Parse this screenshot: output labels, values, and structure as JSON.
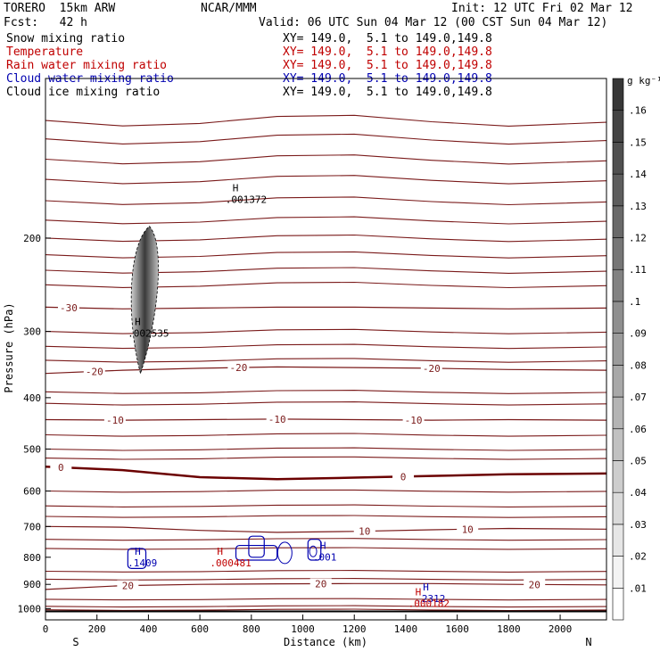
{
  "header": {
    "model": "TORERO  15km ARW",
    "org": "NCAR/MMM",
    "init": "Init: 12 UTC Fri 02 Mar 12",
    "fcst": "Fcst:   42 h",
    "valid": "Valid: 06 UTC Sun 04 Mar 12 (00 CST Sun 04 Mar 12)"
  },
  "fields": [
    {
      "name": "Snow mixing ratio",
      "xy": "XY= 149.0,  5.1 to 149.0,149.8",
      "color": "#000000"
    },
    {
      "name": "Temperature",
      "xy": "XY= 149.0,  5.1 to 149.0,149.8",
      "color": "#c00000"
    },
    {
      "name": "Rain water mixing ratio",
      "xy": "XY= 149.0,  5.1 to 149.0,149.8",
      "color": "#c00000"
    },
    {
      "name": "Cloud water mixing ratio",
      "xy": "XY= 149.0,  5.1 to 149.0,149.8",
      "color": "#0000b0"
    },
    {
      "name": "Cloud ice mixing ratio",
      "xy": "XY= 149.0,  5.1 to 149.0,149.8",
      "color": "#000000"
    }
  ],
  "colors": {
    "temperature": "#7a1a1a",
    "zero_isotherm": "#6b0000",
    "cloud_water": "#0000b0",
    "rain": "#c00000",
    "snow_shade": "#555555"
  },
  "chart_data": {
    "type": "contour",
    "xlabel": "Distance (km)",
    "ylabel": "Pressure (hPa)",
    "xlim": [
      0,
      2180
    ],
    "ylim": [
      1050,
      100
    ],
    "yscale": "log",
    "x_ticks": [
      0,
      200,
      400,
      600,
      800,
      1000,
      1200,
      1400,
      1600,
      1800,
      2000
    ],
    "y_ticks": [
      200,
      300,
      400,
      500,
      600,
      700,
      800,
      900,
      1000
    ],
    "x_end_labels": {
      "left": "S",
      "right": "N"
    },
    "colorbar": {
      "unit": "g kg⁻¹",
      "levels": [
        ".01",
        ".02",
        ".03",
        ".04",
        ".05",
        ".06",
        ".07",
        ".08",
        ".09",
        ".1",
        ".11",
        ".12",
        ".13",
        ".14",
        ".15",
        ".16"
      ],
      "min": 0.0,
      "max": 0.17
    },
    "temperature_contours": [
      {
        "label": "-30",
        "label_x": 90,
        "pressure": [
          270,
          272,
          271,
          270,
          270,
          271,
          272,
          271
        ]
      },
      {
        "label": "-20",
        "label_x": 190,
        "pressure": [
          360,
          355,
          352,
          350,
          351,
          352,
          354,
          355
        ]
      },
      {
        "label": "-20",
        "label_x": 750,
        "pressure": [
          360,
          355,
          352,
          350,
          351,
          352,
          354,
          355
        ]
      },
      {
        "label": "-20",
        "label_x": 1500,
        "pressure": [
          360,
          355,
          352,
          350,
          351,
          352,
          354,
          355
        ]
      },
      {
        "label": "-10",
        "label_x": 270,
        "pressure": [
          440,
          441,
          440,
          439,
          440,
          441,
          440,
          441
        ]
      },
      {
        "label": "-10",
        "label_x": 900,
        "pressure": [
          440,
          441,
          440,
          439,
          440,
          441,
          440,
          441
        ]
      },
      {
        "label": "-10",
        "label_x": 1430,
        "pressure": [
          440,
          441,
          440,
          439,
          440,
          441,
          440,
          441
        ]
      },
      {
        "label": "0",
        "label_x": 60,
        "pressure": [
          540,
          548,
          565,
          570,
          566,
          562,
          558,
          556
        ]
      },
      {
        "label": "0",
        "label_x": 1390,
        "pressure": [
          540,
          548,
          565,
          570,
          566,
          562,
          558,
          556
        ]
      },
      {
        "label": "10",
        "label_x": 1240,
        "pressure": [
          700,
          702,
          712,
          718,
          715,
          710,
          706,
          708
        ]
      },
      {
        "label": "10",
        "label_x": 1640,
        "pressure": [
          700,
          702,
          712,
          718,
          715,
          710,
          706,
          708
        ]
      },
      {
        "label": "20",
        "label_x": 320,
        "pressure": [
          920,
          905,
          900,
          898,
          897,
          897,
          900,
          902
        ]
      },
      {
        "label": "20",
        "label_x": 1070,
        "pressure": [
          920,
          905,
          900,
          898,
          897,
          897,
          900,
          902
        ]
      },
      {
        "label": "20",
        "label_x": 1900,
        "pressure": [
          920,
          905,
          900,
          898,
          897,
          897,
          900,
          902
        ]
      }
    ],
    "temperature_x": [
      0,
      300,
      600,
      900,
      1200,
      1500,
      1800,
      2180
    ],
    "highs": [
      {
        "field": "snow",
        "label": "H",
        "value": ".001372",
        "x": 720,
        "pressure": 165
      },
      {
        "field": "snow",
        "label": "H",
        "value": ".002535",
        "x": 340,
        "pressure": 295
      },
      {
        "field": "cloud_water",
        "label": "H",
        "value": ".1409",
        "x": 340,
        "pressure": 800
      },
      {
        "field": "rain",
        "label": "H",
        "value": ".000481",
        "x": 660,
        "pressure": 800
      },
      {
        "field": "cloud_water",
        "label": "H",
        "value": ".001",
        "x": 1060,
        "pressure": 780
      },
      {
        "field": "cloud_water",
        "label": "H",
        "value": ".2312",
        "x": 1460,
        "pressure": 935
      },
      {
        "field": "rain",
        "label": "H",
        "value": ".000182",
        "x": 1430,
        "pressure": 955
      }
    ]
  }
}
